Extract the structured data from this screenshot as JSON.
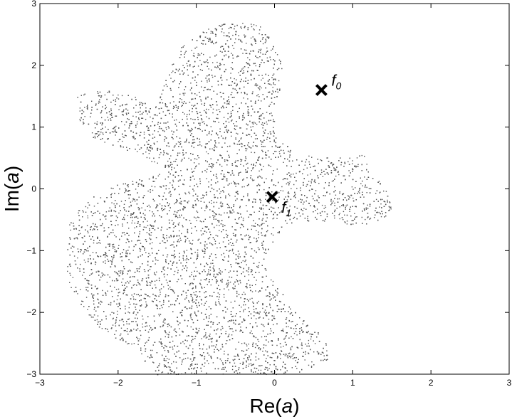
{
  "chart_data": {
    "type": "scatter",
    "title": "",
    "xlabel": "Re(a)",
    "ylabel": "Im(a)",
    "xlabel_parts": {
      "prefix": "Re(",
      "var": "a",
      "suffix": ")"
    },
    "ylabel_parts": {
      "prefix": "Im(",
      "var": "a",
      "suffix": ")"
    },
    "xlim": [
      -3,
      3
    ],
    "ylim": [
      -3,
      3
    ],
    "xticks": [
      -3,
      -2,
      -1,
      0,
      1,
      2,
      3
    ],
    "yticks": [
      -3,
      -2,
      -1,
      0,
      1,
      2,
      3
    ],
    "xtick_labels": [
      "−3",
      "−2",
      "−1",
      "0",
      "1",
      "2",
      "3"
    ],
    "ytick_labels": [
      "−3",
      "−2",
      "−1",
      "0",
      "1",
      "2",
      "3"
    ],
    "grid": false,
    "point_color": "#555555",
    "region_outline": [
      [
        -0.4,
        2.72
      ],
      [
        -0.1,
        2.6
      ],
      [
        0.05,
        2.3
      ],
      [
        0.1,
        1.9
      ],
      [
        0.05,
        1.5
      ],
      [
        0.0,
        1.1
      ],
      [
        0.02,
        0.8
      ],
      [
        0.3,
        0.6
      ],
      [
        0.75,
        0.5
      ],
      [
        1.0,
        0.55
      ],
      [
        1.15,
        0.55
      ],
      [
        1.2,
        0.3
      ],
      [
        1.45,
        0.0
      ],
      [
        1.5,
        -0.4
      ],
      [
        1.2,
        -0.62
      ],
      [
        0.85,
        -0.55
      ],
      [
        0.5,
        -0.5
      ],
      [
        0.1,
        -0.6
      ],
      [
        -0.15,
        -1.2
      ],
      [
        0.2,
        -1.9
      ],
      [
        0.65,
        -2.4
      ],
      [
        0.68,
        -2.75
      ],
      [
        0.3,
        -3.0
      ],
      [
        -1.5,
        -3.0
      ],
      [
        -1.8,
        -2.6
      ],
      [
        -2.3,
        -2.2
      ],
      [
        -2.6,
        -1.7
      ],
      [
        -2.7,
        -1.0
      ],
      [
        -2.6,
        -0.4
      ],
      [
        -2.2,
        0.0
      ],
      [
        -1.6,
        0.22
      ],
      [
        -1.35,
        0.3
      ],
      [
        -1.85,
        0.6
      ],
      [
        -2.3,
        0.8
      ],
      [
        -2.5,
        1.1
      ],
      [
        -2.55,
        1.52
      ],
      [
        -2.2,
        1.62
      ],
      [
        -1.8,
        1.5
      ],
      [
        -1.5,
        1.35
      ],
      [
        -1.4,
        1.8
      ],
      [
        -1.2,
        2.3
      ],
      [
        -0.8,
        2.65
      ]
    ],
    "point_count": 9000,
    "markers": [
      {
        "label": "f",
        "subscript": "0",
        "x": 0.6,
        "y": 1.6
      },
      {
        "label": "f",
        "subscript": "1",
        "x": -0.03,
        "y": -0.13
      }
    ]
  }
}
